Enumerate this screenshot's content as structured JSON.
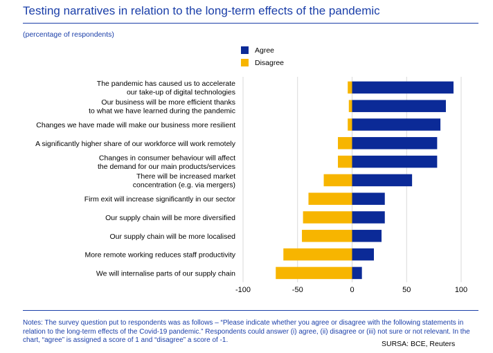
{
  "header": {
    "title": "Testing narratives in relation to the long-term effects of the pandemic",
    "subtitle": "(percentage of respondents)"
  },
  "footer": {
    "notes": "Notes: The survey question put to respondents was as follows – “Please indicate whether you agree or disagree with the following statements in relation to the long-term effects of the Covid-19 pandemic.” Respondents could answer (i) agree, (ii) disagree or (iii) not sure or not relevant. In the chart, “agree” is assigned a score of 1 and “disagree” a score of -1.",
    "source": "SURSA: BCE, Reuters"
  },
  "colors": {
    "agree": "#0b2a97",
    "disagree": "#f7b500",
    "text": "#1a3ea8",
    "grid": "#d9d9d9"
  },
  "chart_data": {
    "type": "bar",
    "orientation": "horizontal",
    "categories": [
      [
        "The pandemic has caused us to accelerate",
        "our take-up of digital technologies"
      ],
      [
        "Our business will be more efficient thanks",
        "to what we have learned during the pandemic"
      ],
      [
        "Changes we have made will make our business more resilient"
      ],
      [
        "A significantly higher share of our workforce will work remotely"
      ],
      [
        "Changes in consumer behaviour will affect",
        "the demand for our main products/services"
      ],
      [
        "There will be increased market",
        "concentration (e.g. via mergers)"
      ],
      [
        "Firm exit will increase significantly in our sector"
      ],
      [
        "Our supply chain will be more diversified"
      ],
      [
        "Our supply chain will be more localised"
      ],
      [
        "More remote working reduces staff productivity"
      ],
      [
        "We will internalise parts of our supply chain"
      ]
    ],
    "series": [
      {
        "name": "Agree",
        "values": [
          93,
          86,
          81,
          78,
          78,
          55,
          30,
          30,
          27,
          20,
          9
        ]
      },
      {
        "name": "Disagree",
        "values": [
          -4,
          -3,
          -4,
          -13,
          -13,
          -26,
          -40,
          -45,
          -46,
          -63,
          -70
        ]
      }
    ],
    "xlim": [
      -100,
      100
    ],
    "xticks": [
      "-100",
      "-50",
      "0",
      "50",
      "100"
    ],
    "grid": true,
    "legend_position": "top"
  }
}
